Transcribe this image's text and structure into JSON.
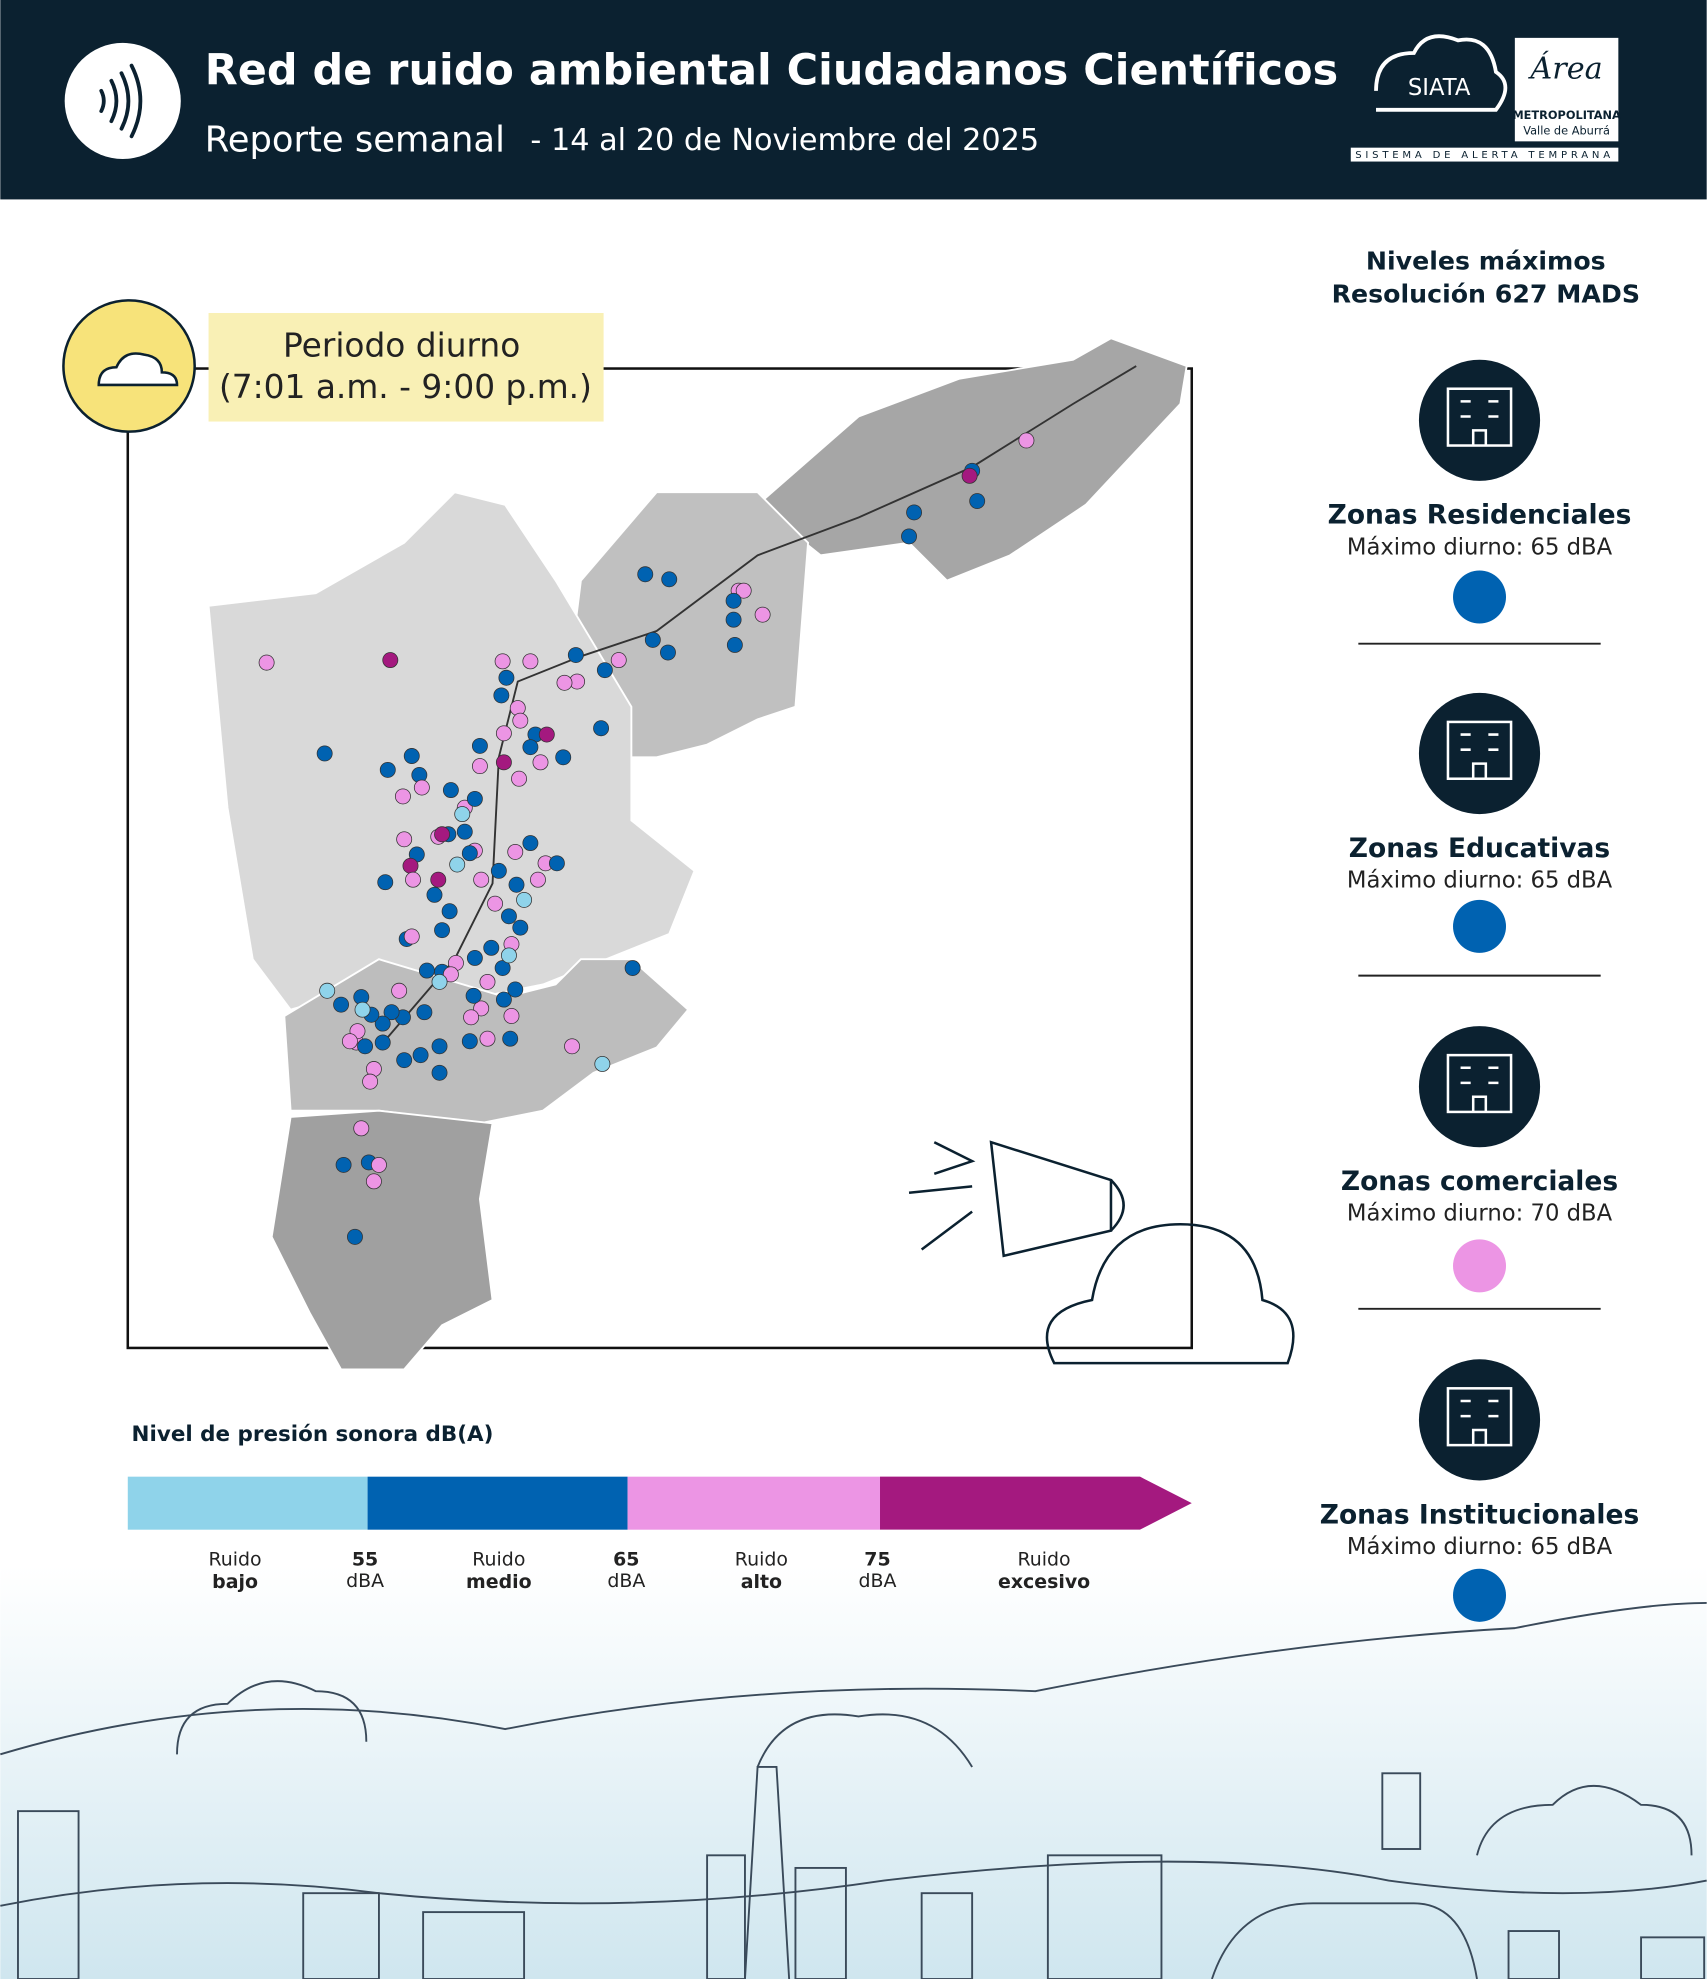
{
  "header": {
    "title": "Red de ruido ambiental Ciudadanos Científicos",
    "subtitle": "Reporte semanal",
    "date": "- 14 al 20 de Noviembre del 2025",
    "logos": [
      "SIATA",
      "Área",
      "METROPOLITANA",
      "Valle de Aburrá",
      "SISTEMA DE ALERTA TEMPRANA"
    ]
  },
  "period": {
    "title": "Periodo diurno",
    "hours": "(7:01 a.m. - 9:00 p.m.)"
  },
  "limits": {
    "title": [
      "Niveles máximos",
      "Resolución 627 MADS"
    ],
    "zones": [
      {
        "name": "Zonas Residenciales",
        "max": "Máximo diurno: 65 dBA",
        "color": "#0062b1"
      },
      {
        "name": "Zonas Educativas",
        "max": "Máximo diurno: 65 dBA",
        "color": "#0062b1"
      },
      {
        "name": "Zonas comerciales",
        "max": "Máximo diurno: 70 dBA",
        "color": "#ec95e4"
      },
      {
        "name": "Zonas Institucionales",
        "max": "Máximo diurno: 65 dBA",
        "color": "#0062b1"
      }
    ]
  },
  "legend": {
    "title": "Nivel de presión sonora dB(A)",
    "levels": [
      {
        "label": [
          "Ruido",
          "bajo"
        ],
        "color": "#8fd3ea"
      },
      {
        "label": [
          "Ruido",
          "medio"
        ],
        "color": "#0062b1"
      },
      {
        "label": [
          "Ruido",
          "alto"
        ],
        "color": "#ec95e4"
      },
      {
        "label": [
          "Ruido",
          "excesivo"
        ],
        "color": "#a4197f"
      }
    ],
    "thresholds": [
      [
        "55",
        "dBA"
      ],
      [
        "65",
        "dBA"
      ],
      [
        "75",
        "dBA"
      ]
    ]
  }
}
